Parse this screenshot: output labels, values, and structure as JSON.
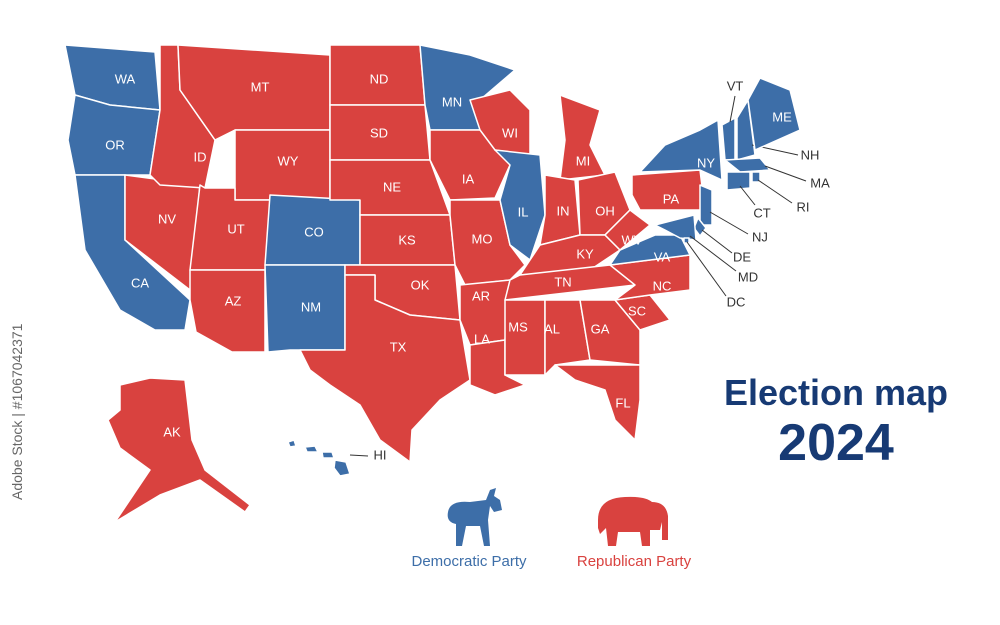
{
  "title": "Election map",
  "year": "2024",
  "watermark": "Adobe Stock | #1067042371",
  "parties": [
    {
      "name": "Democratic Party",
      "color": "#3d6ea8"
    },
    {
      "name": "Republican Party",
      "color": "#d9423f"
    }
  ],
  "states": [
    {
      "label": "WA",
      "party": 0
    },
    {
      "label": "OR",
      "party": 0
    },
    {
      "label": "CA",
      "party": 0
    },
    {
      "label": "NV",
      "party": 1
    },
    {
      "label": "ID",
      "party": 1
    },
    {
      "label": "MT",
      "party": 1
    },
    {
      "label": "WY",
      "party": 1
    },
    {
      "label": "UT",
      "party": 1
    },
    {
      "label": "AZ",
      "party": 1
    },
    {
      "label": "CO",
      "party": 0
    },
    {
      "label": "NM",
      "party": 0
    },
    {
      "label": "ND",
      "party": 1
    },
    {
      "label": "SD",
      "party": 1
    },
    {
      "label": "NE",
      "party": 1
    },
    {
      "label": "KS",
      "party": 1
    },
    {
      "label": "OK",
      "party": 1
    },
    {
      "label": "TX",
      "party": 1
    },
    {
      "label": "MN",
      "party": 0
    },
    {
      "label": "IA",
      "party": 1
    },
    {
      "label": "MO",
      "party": 1
    },
    {
      "label": "AR",
      "party": 1
    },
    {
      "label": "LA",
      "party": 1
    },
    {
      "label": "WI",
      "party": 1
    },
    {
      "label": "IL",
      "party": 0
    },
    {
      "label": "MI",
      "party": 1
    },
    {
      "label": "IN",
      "party": 1
    },
    {
      "label": "OH",
      "party": 1
    },
    {
      "label": "KY",
      "party": 1
    },
    {
      "label": "TN",
      "party": 1
    },
    {
      "label": "MS",
      "party": 1
    },
    {
      "label": "AL",
      "party": 1
    },
    {
      "label": "GA",
      "party": 1
    },
    {
      "label": "FL",
      "party": 1
    },
    {
      "label": "SC",
      "party": 1
    },
    {
      "label": "NC",
      "party": 1
    },
    {
      "label": "VA",
      "party": 0
    },
    {
      "label": "WV",
      "party": 1
    },
    {
      "label": "PA",
      "party": 1
    },
    {
      "label": "NY",
      "party": 0
    },
    {
      "label": "VT",
      "party": 0
    },
    {
      "label": "NH",
      "party": 0
    },
    {
      "label": "ME",
      "party": 0
    },
    {
      "label": "MA",
      "party": 0
    },
    {
      "label": "RI",
      "party": 0
    },
    {
      "label": "CT",
      "party": 0
    },
    {
      "label": "NJ",
      "party": 0
    },
    {
      "label": "DE",
      "party": 0
    },
    {
      "label": "MD",
      "party": 0
    },
    {
      "label": "DC",
      "party": 0
    },
    {
      "label": "AK",
      "party": 1
    },
    {
      "label": "HI",
      "party": 0
    }
  ]
}
